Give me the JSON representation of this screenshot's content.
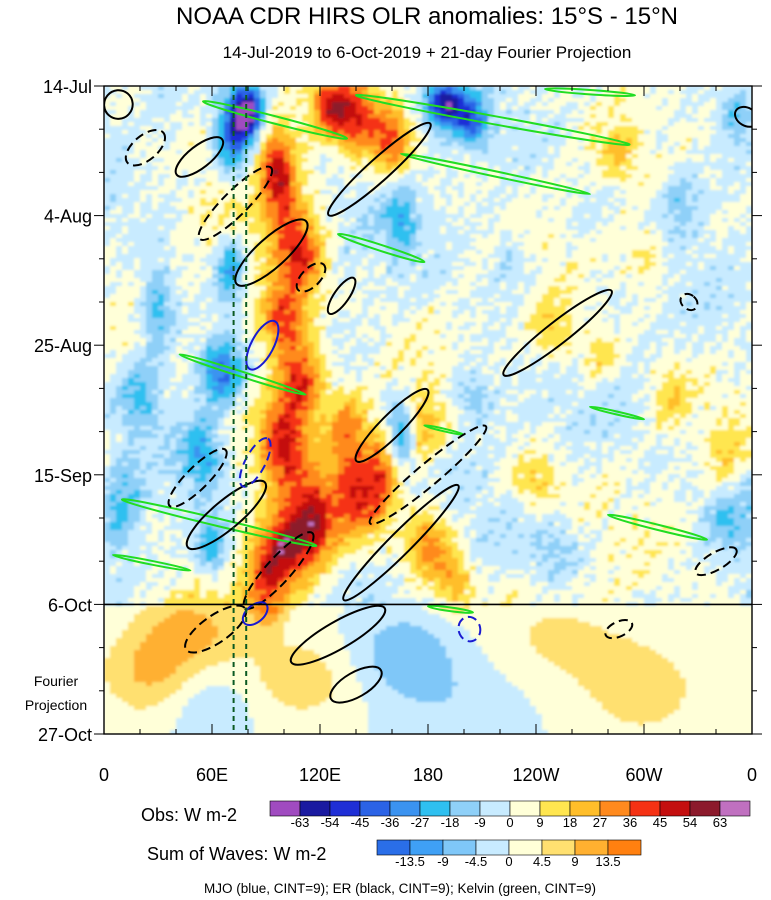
{
  "chart_data": {
    "type": "heatmap",
    "title": "NOAA CDR HIRS OLR anomalies: 15°S - 15°N",
    "subtitle": "14-Jul-2019 to 6-Oct-2019 + 21-day Fourier Projection",
    "x_tick_labels": [
      "0",
      "60E",
      "120E",
      "180",
      "120W",
      "60W",
      "0"
    ],
    "x_ticks_deg": [
      0,
      60,
      120,
      180,
      240,
      300,
      360
    ],
    "xlim": [
      0,
      360
    ],
    "y_tick_labels": [
      "14-Jul",
      "4-Aug",
      "25-Aug",
      "15-Sep",
      "6-Oct",
      "27-Oct"
    ],
    "y_ticks_day": [
      0,
      21,
      42,
      63,
      84,
      105
    ],
    "ylim_day": [
      0,
      105
    ],
    "obs_end_day": 84,
    "projection_label_line1": "Fourier",
    "projection_label_line2": "Projection",
    "reference_lines_lon": [
      72,
      79
    ],
    "obs_colorbar": {
      "label": "Obs: W m-2",
      "levels": [
        "-63",
        "-54",
        "-45",
        "-36",
        "-27",
        "-18",
        "-9",
        "0",
        "9",
        "18",
        "27",
        "36",
        "45",
        "54",
        "63"
      ],
      "colors": [
        "#a04bc0",
        "#1a1aa0",
        "#1f2fd6",
        "#2b63e6",
        "#3b93f0",
        "#2fc0f0",
        "#8fd0f8",
        "#c8ebff",
        "#ffffd8",
        "#ffe650",
        "#ffbe2a",
        "#ff8a1e",
        "#f53214",
        "#c40f0f",
        "#8c1a2c",
        "#c070c0"
      ]
    },
    "waves_colorbar": {
      "label": "Sum of Waves: W m-2",
      "levels": [
        "-13.5",
        "-9",
        "-4.5",
        "0",
        "4.5",
        "9",
        "13.5"
      ],
      "colors": [
        "#2a6ee8",
        "#3fa0f5",
        "#7fc7f8",
        "#c8ebff",
        "#ffffd8",
        "#ffe070",
        "#ffb030",
        "#ff8010"
      ]
    },
    "footnote": "MJO (blue, CINT=9); ER (black, CINT=9); Kelvin (green, CINT=9)",
    "wave_colors": {
      "mjo": "#1a1ad0",
      "er": "#000000",
      "kelvin": "#22dd22"
    },
    "features": [
      {
        "lon": 80,
        "day": 4,
        "w": 6,
        "h": 3,
        "v": -60
      },
      {
        "lon": 72,
        "day": 8,
        "w": 7,
        "h": 5,
        "v": -45
      },
      {
        "lon": 70,
        "day": 30,
        "w": 6,
        "h": 4,
        "v": -30
      },
      {
        "lon": 65,
        "day": 46,
        "w": 9,
        "h": 4,
        "v": -40
      },
      {
        "lon": 55,
        "day": 60,
        "w": 8,
        "h": 4,
        "v": -28
      },
      {
        "lon": 30,
        "day": 36,
        "w": 7,
        "h": 5,
        "v": -25
      },
      {
        "lon": 20,
        "day": 50,
        "w": 8,
        "h": 4,
        "v": -22
      },
      {
        "lon": 10,
        "day": 68,
        "w": 8,
        "h": 5,
        "v": -20
      },
      {
        "lon": 60,
        "day": 75,
        "w": 7,
        "h": 4,
        "v": -28
      },
      {
        "lon": 100,
        "day": 18,
        "w": 8,
        "h": 5,
        "v": 32
      },
      {
        "lon": 95,
        "day": 12,
        "w": 6,
        "h": 4,
        "v": 25
      },
      {
        "lon": 110,
        "day": 28,
        "w": 9,
        "h": 4,
        "v": 38
      },
      {
        "lon": 100,
        "day": 38,
        "w": 9,
        "h": 4,
        "v": 44
      },
      {
        "lon": 110,
        "day": 48,
        "w": 9,
        "h": 4,
        "v": 40
      },
      {
        "lon": 100,
        "day": 58,
        "w": 9,
        "h": 5,
        "v": 42
      },
      {
        "lon": 115,
        "day": 71,
        "w": 9,
        "h": 5,
        "v": 50
      },
      {
        "lon": 100,
        "day": 75,
        "w": 8,
        "h": 4,
        "v": 42
      },
      {
        "lon": 90,
        "day": 80,
        "w": 7,
        "h": 4,
        "v": 32
      },
      {
        "lon": 140,
        "day": 66,
        "w": 10,
        "h": 5,
        "v": 40
      },
      {
        "lon": 135,
        "day": 55,
        "w": 8,
        "h": 4,
        "v": 28
      },
      {
        "lon": 125,
        "day": 3,
        "w": 6,
        "h": 3,
        "v": 28
      },
      {
        "lon": 138,
        "day": 5,
        "w": 10,
        "h": 4,
        "v": 46
      },
      {
        "lon": 160,
        "day": 9,
        "w": 8,
        "h": 4,
        "v": 32
      },
      {
        "lon": 155,
        "day": 62,
        "w": 6,
        "h": 5,
        "v": 30
      },
      {
        "lon": 175,
        "day": 55,
        "w": 8,
        "h": 4,
        "v": 25
      },
      {
        "lon": 180,
        "day": 74,
        "w": 9,
        "h": 4,
        "v": 30
      },
      {
        "lon": 195,
        "day": 80,
        "w": 8,
        "h": 3,
        "v": 24
      },
      {
        "lon": 240,
        "day": 64,
        "w": 10,
        "h": 3,
        "v": 18
      },
      {
        "lon": 250,
        "day": 40,
        "w": 9,
        "h": 4,
        "v": 18
      },
      {
        "lon": 275,
        "day": 44,
        "w": 8,
        "h": 3,
        "v": 16
      },
      {
        "lon": 300,
        "day": 28,
        "w": 9,
        "h": 4,
        "v": 16
      },
      {
        "lon": 285,
        "day": 11,
        "w": 8,
        "h": 3,
        "v": 16
      },
      {
        "lon": 315,
        "day": 50,
        "w": 7,
        "h": 4,
        "v": 14
      },
      {
        "lon": 345,
        "day": 60,
        "w": 7,
        "h": 4,
        "v": 13
      },
      {
        "lon": 190,
        "day": 3,
        "w": 8,
        "h": 2.5,
        "v": -60
      },
      {
        "lon": 205,
        "day": 6,
        "w": 6,
        "h": 2.5,
        "v": -35
      },
      {
        "lon": 165,
        "day": 56,
        "w": 6,
        "h": 4,
        "v": -36
      },
      {
        "lon": 165,
        "day": 22,
        "w": 6,
        "h": 4,
        "v": -22
      },
      {
        "lon": 205,
        "day": 50,
        "w": 8,
        "h": 3,
        "v": -20
      },
      {
        "lon": 320,
        "day": 18,
        "w": 8,
        "h": 4,
        "v": -14
      },
      {
        "lon": 250,
        "day": 75,
        "w": 10,
        "h": 3,
        "v": -14
      },
      {
        "lon": 225,
        "day": 28,
        "w": 8,
        "h": 4,
        "v": -12
      },
      {
        "lon": 345,
        "day": 70,
        "w": 8,
        "h": 4,
        "v": -16
      },
      {
        "lon": 350,
        "day": 4,
        "w": 6,
        "h": 3,
        "v": -18
      },
      {
        "lon": 50,
        "day": 88,
        "w": 20,
        "h": 5,
        "v": 10
      },
      {
        "lon": 25,
        "day": 95,
        "w": 18,
        "h": 5,
        "v": 9
      },
      {
        "lon": 110,
        "day": 96,
        "w": 25,
        "h": 5,
        "v": 7
      },
      {
        "lon": 165,
        "day": 92,
        "w": 22,
        "h": 5,
        "v": -8
      },
      {
        "lon": 250,
        "day": 90,
        "w": 30,
        "h": 6,
        "v": 5
      },
      {
        "lon": 300,
        "day": 98,
        "w": 25,
        "h": 6,
        "v": 6
      },
      {
        "lon": 60,
        "day": 100,
        "w": 18,
        "h": 5,
        "v": -5
      },
      {
        "lon": 200,
        "day": 100,
        "w": 30,
        "h": 6,
        "v": -4
      }
    ],
    "kelvin_contours": [
      {
        "lon1": 55,
        "day1": 2.5,
        "lon2": 135,
        "day2": 8.5,
        "wid": 1.0
      },
      {
        "lon1": 140,
        "day1": 1.5,
        "lon2": 292,
        "day2": 9.5,
        "wid": 1.1
      },
      {
        "lon1": 165,
        "day1": 11.0,
        "lon2": 270,
        "day2": 17.5,
        "wid": 0.7
      },
      {
        "lon1": 245,
        "day1": 0.5,
        "lon2": 295,
        "day2": 1.5,
        "wid": 0.6
      },
      {
        "lon1": 130,
        "day1": 24.0,
        "lon2": 178,
        "day2": 28.5,
        "wid": 0.8
      },
      {
        "lon1": 42,
        "day1": 43.5,
        "lon2": 112,
        "day2": 50.0,
        "wid": 0.7
      },
      {
        "lon1": 10,
        "day1": 67.0,
        "lon2": 118,
        "day2": 74.5,
        "wid": 1.0
      },
      {
        "lon1": 5,
        "day1": 76.0,
        "lon2": 48,
        "day2": 78.5,
        "wid": 0.5
      },
      {
        "lon1": 280,
        "day1": 69.5,
        "lon2": 335,
        "day2": 73.5,
        "wid": 0.7
      },
      {
        "lon1": 178,
        "day1": 55.0,
        "lon2": 200,
        "day2": 56.5,
        "wid": 0.35
      },
      {
        "lon1": 270,
        "day1": 52.0,
        "lon2": 300,
        "day2": 54.0,
        "wid": 0.4
      },
      {
        "lon1": 180,
        "day1": 84.3,
        "lon2": 205,
        "day2": 85.3,
        "wid": 0.5
      }
    ],
    "er_solid": [
      {
        "lon": 8,
        "day": 3,
        "rx": 8,
        "rd": 2.3,
        "ang": -50
      },
      {
        "lon": 53,
        "day": 11.5,
        "rx": 16,
        "rd": 1.8,
        "ang": -38
      },
      {
        "lon": 153,
        "day": 13.5,
        "rx": 38,
        "rd": 1.8,
        "ang": -42
      },
      {
        "lon": 93,
        "day": 27,
        "rx": 26,
        "rd": 2.4,
        "ang": -42
      },
      {
        "lon": 132,
        "day": 34,
        "rx": 12,
        "rd": 1.2,
        "ang": -55
      },
      {
        "lon": 252,
        "day": 40,
        "rx": 38,
        "rd": 1.8,
        "ang": -38
      },
      {
        "lon": 160,
        "day": 55,
        "rx": 28,
        "rd": 1.8,
        "ang": -45
      },
      {
        "lon": 68,
        "day": 69.5,
        "rx": 28,
        "rd": 2.3,
        "ang": -40
      },
      {
        "lon": 165,
        "day": 74,
        "rx": 45,
        "rd": 1.8,
        "ang": -45
      },
      {
        "lon": 130,
        "day": 89,
        "rx": 30,
        "rd": 2.2,
        "ang": -30
      },
      {
        "lon": 140,
        "day": 97,
        "rx": 16,
        "rd": 2.0,
        "ang": -30
      },
      {
        "lon": 357,
        "day": 5,
        "rx": 5,
        "rd": 2,
        "ang": -60
      }
    ],
    "er_dashed": [
      {
        "lon": 23,
        "day": 10,
        "rx": 13,
        "rd": 2.0,
        "ang": -40
      },
      {
        "lon": 73,
        "day": 19,
        "rx": 28,
        "rd": 2.0,
        "ang": -45
      },
      {
        "lon": 115,
        "day": 31,
        "rx": 10,
        "rd": 1.5,
        "ang": -45
      },
      {
        "lon": 180,
        "day": 63,
        "rx": 42,
        "rd": 1.8,
        "ang": -40
      },
      {
        "lon": 52,
        "day": 63.5,
        "rx": 22,
        "rd": 1.8,
        "ang": -45
      },
      {
        "lon": 97,
        "day": 78.5,
        "rx": 28,
        "rd": 2.0,
        "ang": -48
      },
      {
        "lon": 62,
        "day": 88,
        "rx": 20,
        "rd": 2.2,
        "ang": -35
      },
      {
        "lon": 340,
        "day": 77,
        "rx": 13,
        "rd": 1.4,
        "ang": -30
      },
      {
        "lon": 286,
        "day": 88,
        "rx": 8,
        "rd": 1.2,
        "ang": -25
      },
      {
        "lon": 325,
        "day": 35,
        "rx": 4,
        "rd": 1.5,
        "ang": -50
      }
    ],
    "mjo_solid": [
      {
        "lon": 88,
        "day": 42,
        "rx": 15,
        "rd": 1.8,
        "ang": -62
      },
      {
        "lon": 84,
        "day": 85.5,
        "rx": 8,
        "rd": 1.4,
        "ang": -40
      }
    ],
    "mjo_dashed": [
      {
        "lon": 84,
        "day": 61,
        "rx": 15,
        "rd": 1.6,
        "ang": -62
      },
      {
        "lon": 203,
        "day": 88,
        "rx": 6,
        "rd": 2.0,
        "ang": -15
      }
    ]
  }
}
